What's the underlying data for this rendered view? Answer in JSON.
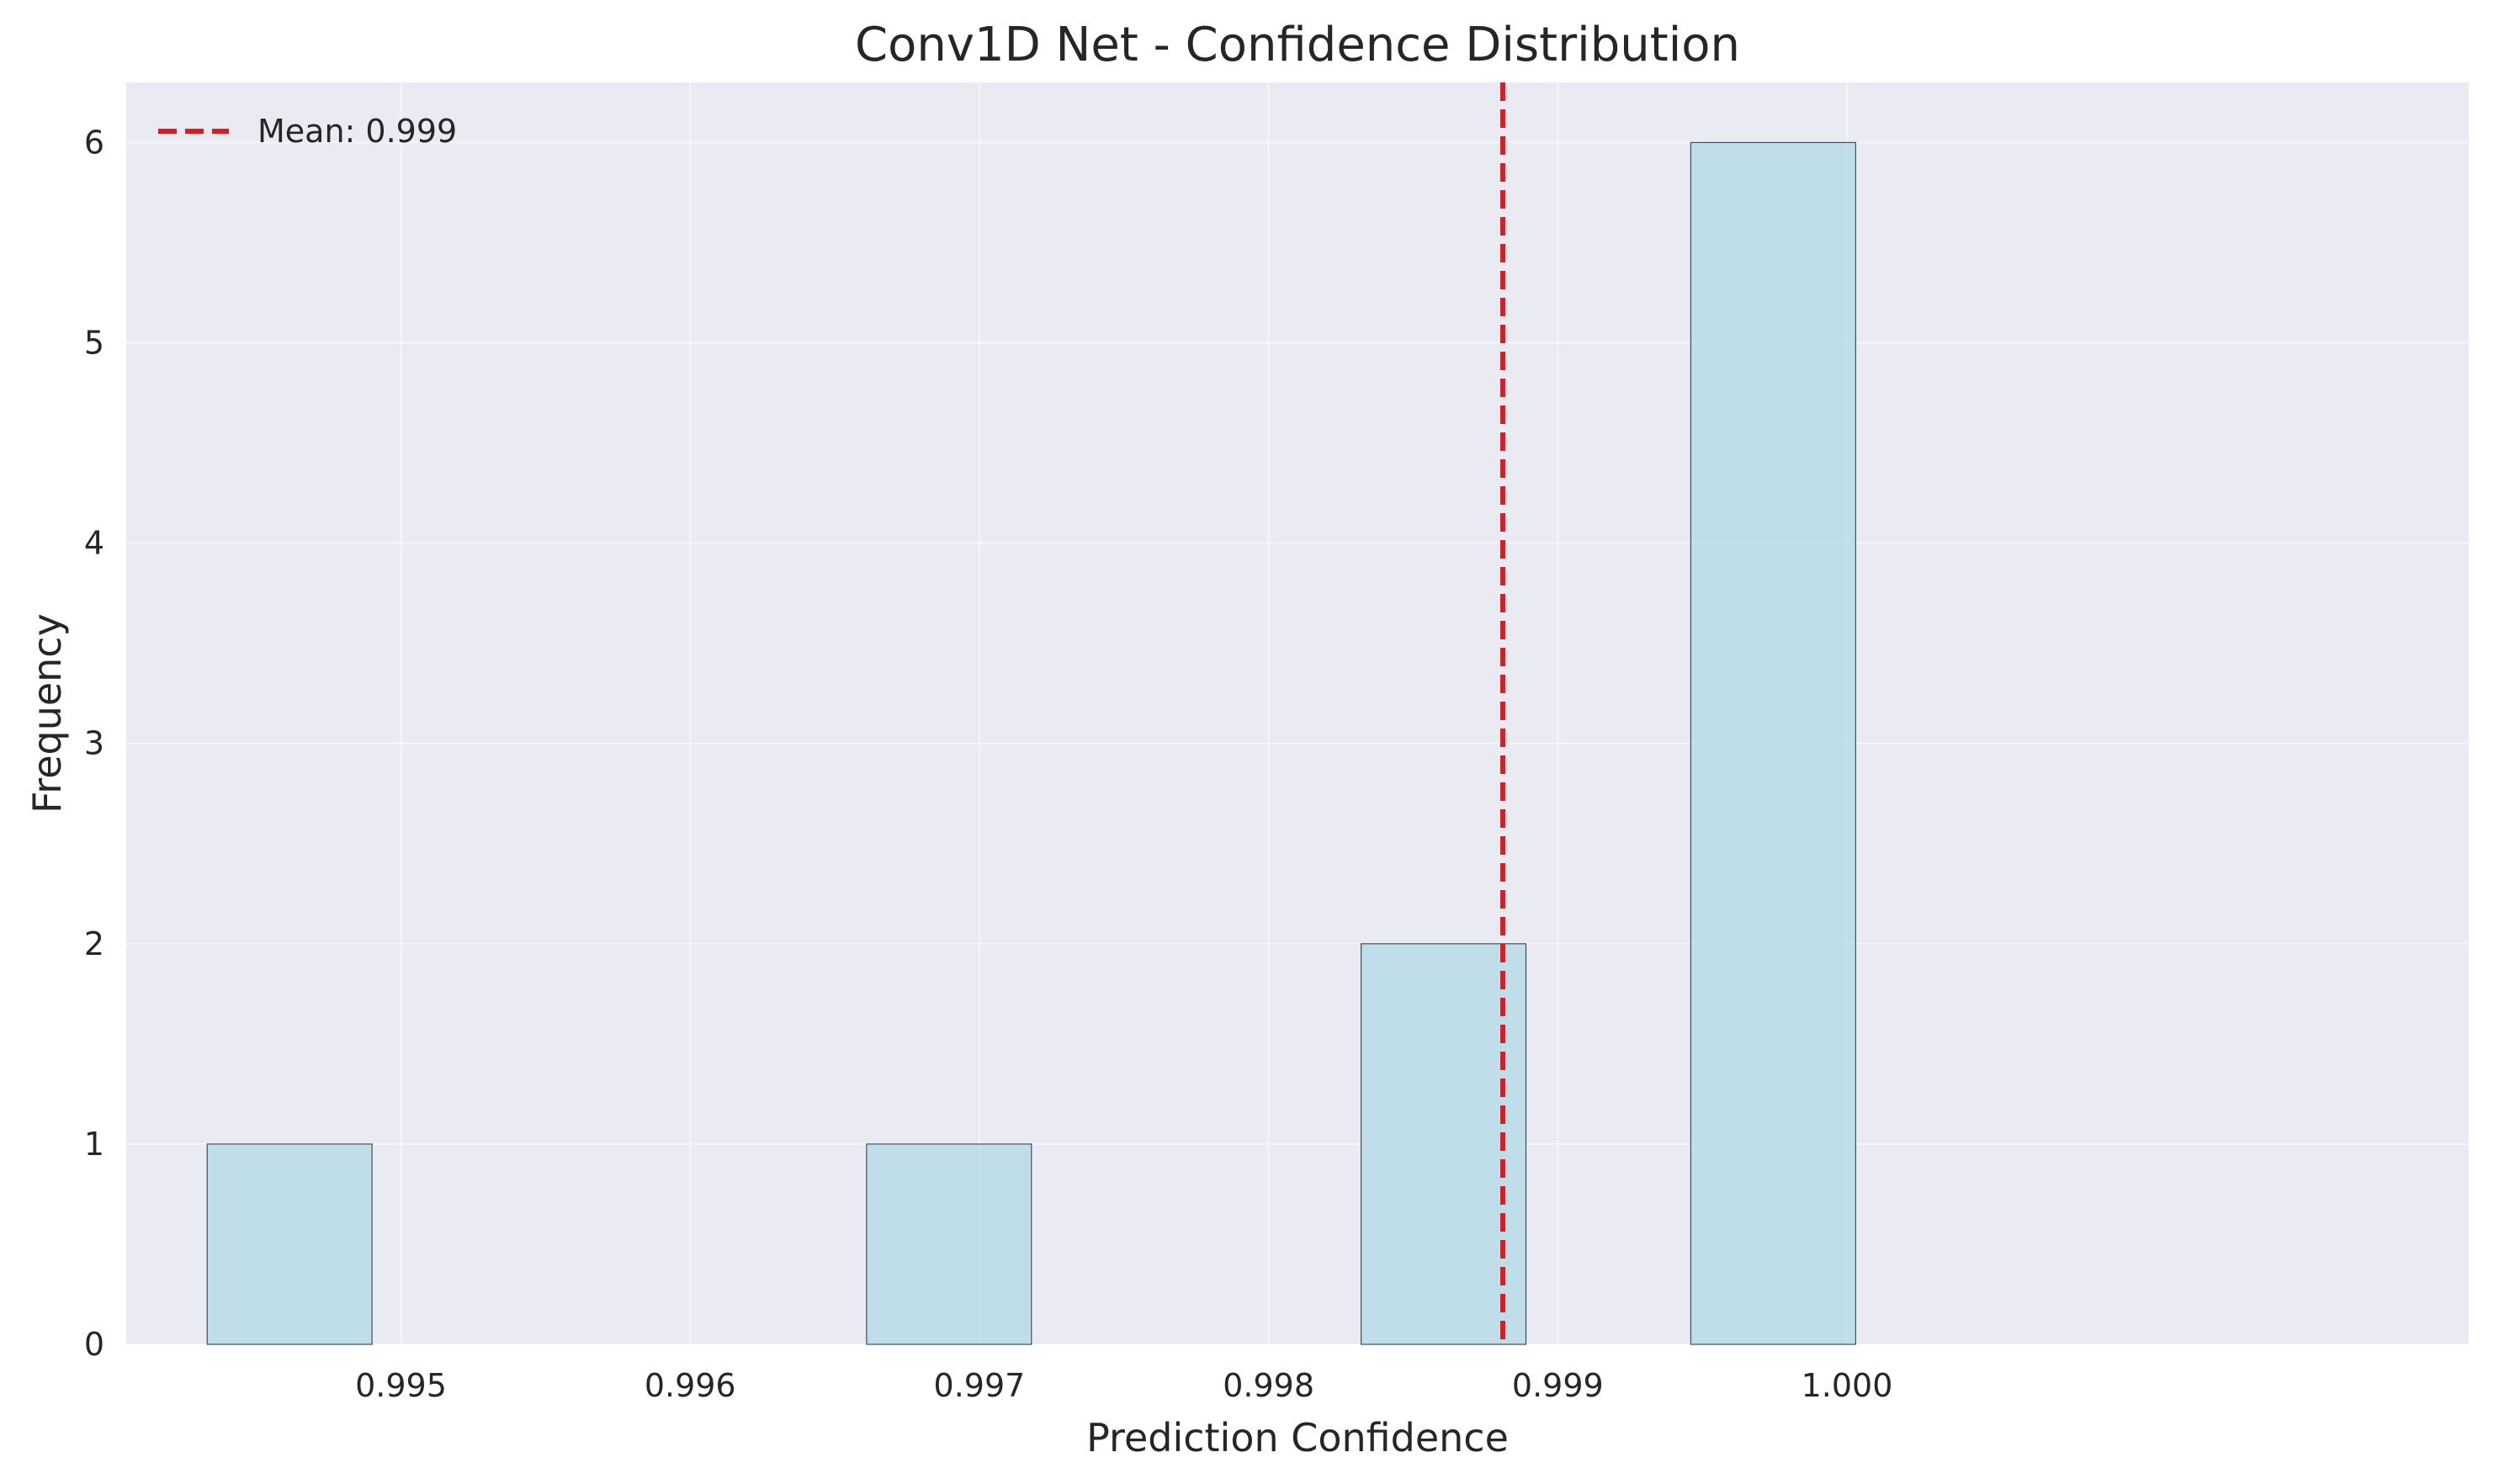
{
  "chart_data": {
    "type": "bar",
    "title": "Conv1D Net - Confidence Distribution",
    "xlabel": "Prediction Confidence",
    "ylabel": "Frequency",
    "xlim": [
      0.99405,
      1.00215
    ],
    "ylim": [
      0,
      6.3
    ],
    "xticks": [
      0.995,
      0.996,
      0.997,
      0.998,
      0.999,
      1.0
    ],
    "xtick_labels": [
      "0.995",
      "0.996",
      "0.997",
      "0.998",
      "0.999",
      "1.000"
    ],
    "yticks": [
      0,
      1,
      2,
      3,
      4,
      5,
      6
    ],
    "ytick_labels": [
      "0",
      "1",
      "2",
      "3",
      "4",
      "5",
      "6"
    ],
    "bins": [
      {
        "x0": 0.99433,
        "x1": 0.9949,
        "count": 1
      },
      {
        "x0": 0.99661,
        "x1": 0.99718,
        "count": 1
      },
      {
        "x0": 0.99832,
        "x1": 0.99889,
        "count": 2
      },
      {
        "x0": 0.99946,
        "x1": 1.00003,
        "count": 6
      }
    ],
    "mean_line": {
      "value": 0.99881,
      "label": "Mean: 0.999",
      "color": "#e31a1c",
      "style": "dashed"
    },
    "grid": true,
    "legend_position": "top-left",
    "colors": {
      "bar": "#add8e6",
      "background": "#eaeaf2",
      "mean": "#e31a1c"
    }
  }
}
